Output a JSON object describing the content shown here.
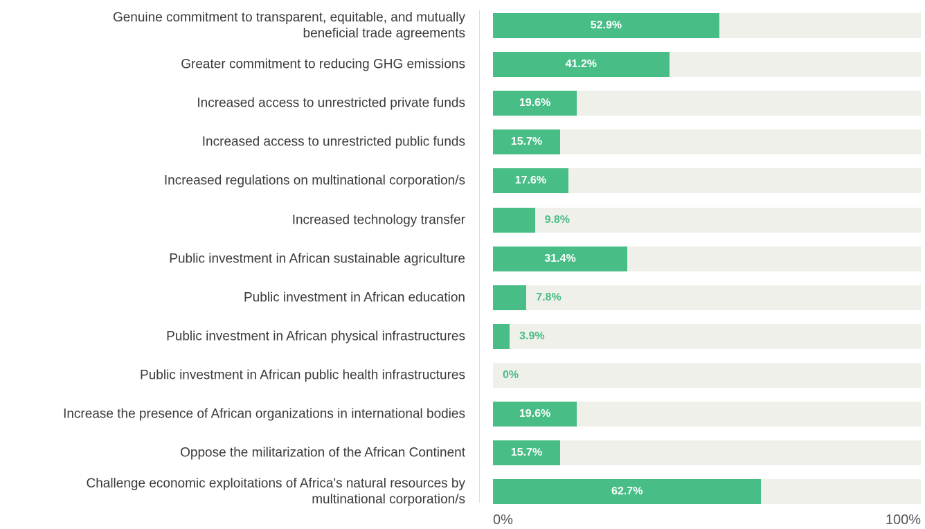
{
  "chart_data": {
    "type": "bar",
    "orientation": "horizontal",
    "categories": [
      "Genuine commitment to transparent, equitable, and mutually\nbeneficial trade agreements",
      "Greater commitment to reducing GHG emissions",
      "Increased access to unrestricted private funds",
      "Increased access to unrestricted public funds",
      "Increased regulations on multinational corporation/s",
      "Increased technology transfer",
      "Public investment in African sustainable agriculture",
      "Public investment in African education",
      "Public investment in African physical infrastructures",
      "Public investment in African public health infrastructures",
      "Increase the presence of African organizations in international bodies",
      "Oppose the militarization of the African Continent",
      "Challenge economic exploitations of Africa's natural resources by\nmultinational corporation/s"
    ],
    "values": [
      52.9,
      41.2,
      19.6,
      15.7,
      17.6,
      9.8,
      31.4,
      7.8,
      3.9,
      0,
      19.6,
      15.7,
      62.7
    ],
    "value_labels": [
      "52.9%",
      "41.2%",
      "19.6%",
      "15.7%",
      "17.6%",
      "9.8%",
      "31.4%",
      "7.8%",
      "3.9%",
      "0%",
      "19.6%",
      "15.7%",
      "62.7%"
    ],
    "color": "#48bd86",
    "xlim": [
      0,
      100
    ],
    "xticks": [
      {
        "value": 0,
        "label": "0%"
      },
      {
        "value": 100,
        "label": "100%"
      }
    ]
  }
}
